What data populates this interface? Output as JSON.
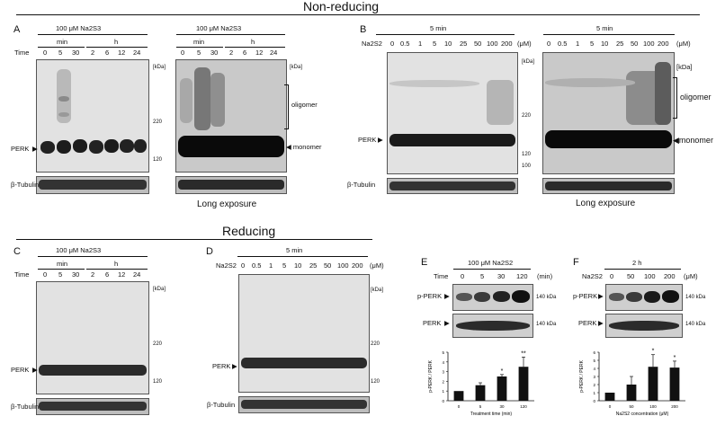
{
  "headings": {
    "non_reducing": "Non-reducing",
    "reducing": "Reducing"
  },
  "panels": {
    "A": {
      "label": "A",
      "treatment": "100 μM Na2S3",
      "min_label": "min",
      "h_label": "h",
      "time_label": "Time",
      "times": [
        "0",
        "5",
        "30",
        "2",
        "6",
        "12",
        "24"
      ],
      "kda": "[kDa]",
      "markers": [
        "220",
        "120"
      ],
      "perk": "PERK",
      "tubulin": "β-Tubulin",
      "long_exposure": "Long exposure",
      "oligomer": "oligomer",
      "monomer": "monomer"
    },
    "B": {
      "label": "B",
      "time_header": "5 min",
      "reagent": "Na2S2",
      "concentrations": [
        "0",
        "0.5",
        "1",
        "5",
        "10",
        "25",
        "50",
        "100",
        "200"
      ],
      "unit": "(μM)",
      "kda": "[kDa]",
      "markers": [
        "220",
        "120",
        "100"
      ],
      "perk": "PERK",
      "tubulin": "β-Tubulin",
      "long_exposure": "Long exposure",
      "oligomer": "oligomer",
      "monomer": "monomer"
    },
    "C": {
      "label": "C",
      "treatment": "100 μM Na2S3",
      "min_label": "min",
      "h_label": "h",
      "time_label": "Time",
      "times": [
        "0",
        "5",
        "30",
        "2",
        "6",
        "12",
        "24"
      ],
      "kda": "[kDa]",
      "markers": [
        "220",
        "120"
      ],
      "perk": "PERK",
      "tubulin": "β-Tubulin"
    },
    "D": {
      "label": "D",
      "time_header": "5 min",
      "reagent": "Na2S2",
      "concentrations": [
        "0",
        "0.5",
        "1",
        "5",
        "10",
        "25",
        "50",
        "100",
        "200"
      ],
      "unit": "(μM)",
      "kda": "[kDa]",
      "markers": [
        "220",
        "120"
      ],
      "perk": "PERK",
      "tubulin": "β-Tubulin"
    },
    "E": {
      "label": "E",
      "treatment": "100 μM Na2S2",
      "time_label": "Time",
      "times": [
        "0",
        "5",
        "30",
        "120"
      ],
      "unit": "(min)",
      "ppERK": "p-PERK",
      "perk": "PERK",
      "kda1": "140 kDa",
      "kda2": "140 kDa"
    },
    "F": {
      "label": "F",
      "time_header": "2 h",
      "reagent": "Na2S2",
      "concentrations": [
        "0",
        "50",
        "100",
        "200"
      ],
      "unit": "(μM)",
      "ppERK": "p-PERK",
      "perk": "PERK",
      "kda1": "140 kDa",
      "kda2": "140 kDa"
    }
  },
  "chart_data": [
    {
      "type": "bar",
      "panel": "E",
      "categories": [
        "0",
        "5",
        "30",
        "120"
      ],
      "values": [
        1.0,
        1.6,
        2.5,
        3.5
      ],
      "errors": [
        0.0,
        0.25,
        0.2,
        1.0
      ],
      "significance": [
        "",
        "",
        "*",
        "**"
      ],
      "xlabel": "Treatment time (min)",
      "ylabel": "p-PERK / PERK",
      "ylim": [
        0,
        5
      ],
      "yticks": [
        "0",
        "1",
        "2",
        "3",
        "4",
        "5"
      ]
    },
    {
      "type": "bar",
      "panel": "F",
      "categories": [
        "0",
        "50",
        "100",
        "200"
      ],
      "values": [
        1.0,
        2.0,
        4.2,
        4.1
      ],
      "errors": [
        0.0,
        1.0,
        1.5,
        0.8
      ],
      "significance": [
        "",
        "",
        "*",
        "*"
      ],
      "xlabel": "Na2S2 concentration (μM)",
      "ylabel": "p-PERK / PERK",
      "ylim": [
        0,
        6
      ],
      "yticks": [
        "0",
        "1",
        "2",
        "3",
        "4",
        "5",
        "6"
      ]
    }
  ]
}
